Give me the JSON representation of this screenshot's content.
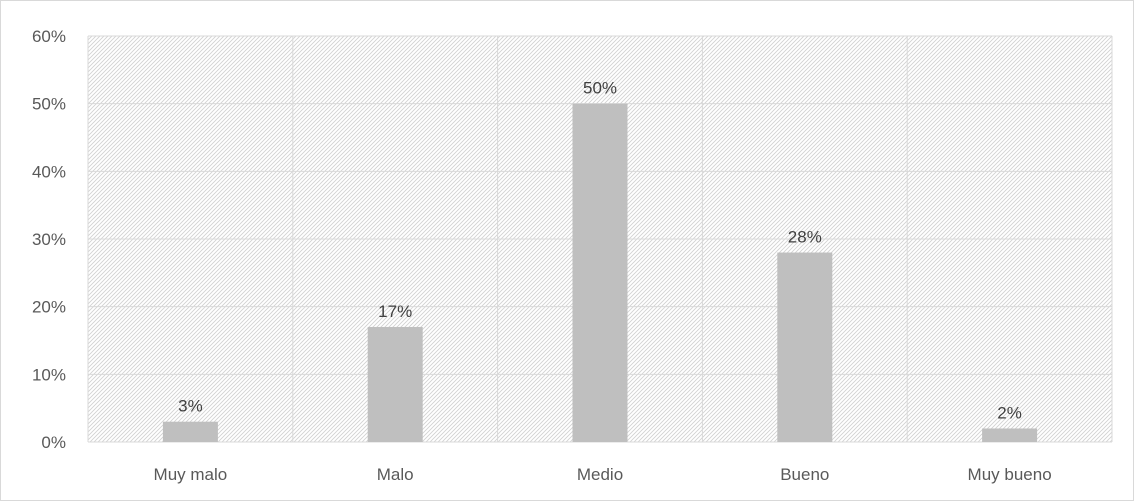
{
  "chart_data": {
    "type": "bar",
    "categories": [
      "Muy malo",
      "Malo",
      "Medio",
      "Bueno",
      "Muy bueno"
    ],
    "values": [
      3,
      17,
      50,
      28,
      2
    ],
    "data_labels": [
      "3%",
      "17%",
      "50%",
      "28%",
      "2%"
    ],
    "ylim": [
      0,
      60
    ],
    "yticks": [
      0,
      10,
      20,
      30,
      40,
      50,
      60
    ],
    "ytick_labels": [
      "0%",
      "10%",
      "20%",
      "30%",
      "40%",
      "50%",
      "60%"
    ],
    "grid": true,
    "legend": "none",
    "title": "",
    "xlabel": "",
    "ylabel": "",
    "colors": {
      "bar": "#bfbfbf",
      "gridline": "#d9d9d9",
      "hatch": "#d0d0d0",
      "text": "#595959"
    }
  }
}
